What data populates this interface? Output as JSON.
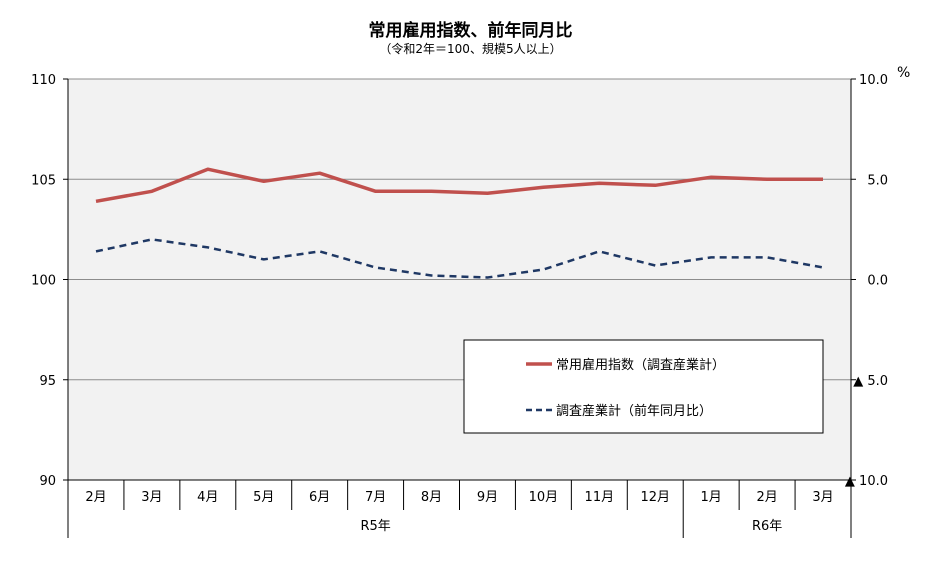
{
  "chart_data": {
    "type": "line",
    "title": "常用雇用指数、前年同月比",
    "subtitle": "（令和2年＝100、規模5人以上）",
    "categories": [
      "2月",
      "3月",
      "4月",
      "5月",
      "6月",
      "7月",
      "8月",
      "9月",
      "10月",
      "11月",
      "12月",
      "1月",
      "2月",
      "3月"
    ],
    "year_groups": [
      {
        "label": "R5年",
        "count": 11
      },
      {
        "label": "R6年",
        "count": 3
      }
    ],
    "y_left": {
      "min": 90,
      "max": 110,
      "ticks": [
        "110",
        "105",
        "100",
        "95",
        "90"
      ]
    },
    "y_right": {
      "min": -10,
      "max": 10,
      "unit": "%",
      "ticks": [
        "10.0",
        "5.0",
        "0.0",
        "▲ 5.0",
        "▲ 10.0"
      ]
    },
    "series": [
      {
        "name": "常用雇用指数（調査産業計）",
        "axis": "left",
        "style": "solid",
        "color": "#c0504d",
        "values": [
          103.9,
          104.4,
          105.5,
          104.9,
          105.3,
          104.4,
          104.4,
          104.3,
          104.6,
          104.8,
          104.7,
          105.1,
          105.0,
          105.0
        ]
      },
      {
        "name": "調査産業計（前年同月比）",
        "axis": "right",
        "style": "dashed",
        "color": "#1f3864",
        "values": [
          1.4,
          2.0,
          1.6,
          1.0,
          1.4,
          0.6,
          0.2,
          0.1,
          0.5,
          1.4,
          0.7,
          1.1,
          1.1,
          0.6
        ]
      }
    ],
    "grid": true,
    "legend_position": "bottom-right"
  },
  "colors": {
    "plot_bg": "#f2f2f2",
    "grid": "#8c8c8c"
  }
}
